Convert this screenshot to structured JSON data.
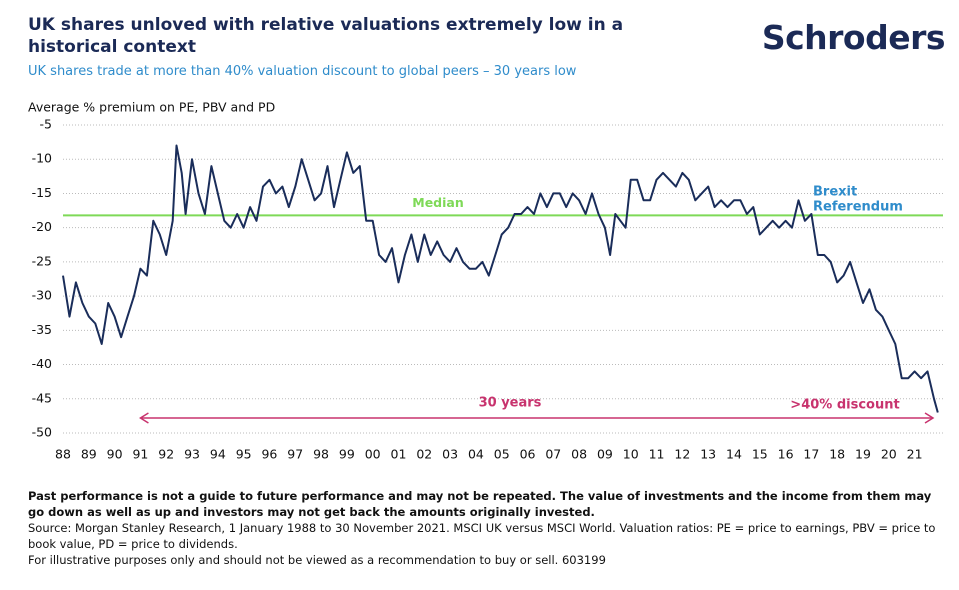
{
  "brand": "Schroders",
  "footnotes": [
    "Past performance is not a guide to future performance and may not be repeated. The value of investments and the income from them may go down as well as up and investors may not get back the amounts originally invested.",
    "Source: Morgan Stanley Research, 1 January 1988 to 30 November 2021. MSCI UK versus MSCI World. Valuation ratios: PE = price to earnings, PBV = price to book value, PD = price to dividends.",
    "For illustrative purposes only and should not be viewed as a recommendation to buy or sell. 603199"
  ],
  "chart_data": {
    "type": "line",
    "title": "UK shares unloved with relative valuations extremely low in a historical context",
    "subtitle": "UK shares trade at more than 40% valuation discount to global peers – 30 years low",
    "y_label": "Average % premium on PE, PBV and PD",
    "xlim": [
      1988,
      2022.1
    ],
    "xticks": [
      {
        "value": 1988,
        "label": "88"
      },
      {
        "value": 1989,
        "label": "89"
      },
      {
        "value": 1990,
        "label": "90"
      },
      {
        "value": 1991,
        "label": "91"
      },
      {
        "value": 1992,
        "label": "92"
      },
      {
        "value": 1993,
        "label": "93"
      },
      {
        "value": 1994,
        "label": "94"
      },
      {
        "value": 1995,
        "label": "95"
      },
      {
        "value": 1996,
        "label": "96"
      },
      {
        "value": 1997,
        "label": "97"
      },
      {
        "value": 1998,
        "label": "98"
      },
      {
        "value": 1999,
        "label": "99"
      },
      {
        "value": 2000,
        "label": "00"
      },
      {
        "value": 2001,
        "label": "01"
      },
      {
        "value": 2002,
        "label": "02"
      },
      {
        "value": 2003,
        "label": "03"
      },
      {
        "value": 2004,
        "label": "04"
      },
      {
        "value": 2005,
        "label": "05"
      },
      {
        "value": 2006,
        "label": "06"
      },
      {
        "value": 2007,
        "label": "07"
      },
      {
        "value": 2008,
        "label": "08"
      },
      {
        "value": 2009,
        "label": "09"
      },
      {
        "value": 2010,
        "label": "10"
      },
      {
        "value": 2011,
        "label": "11"
      },
      {
        "value": 2012,
        "label": "12"
      },
      {
        "value": 2013,
        "label": "13"
      },
      {
        "value": 2014,
        "label": "14"
      },
      {
        "value": 2015,
        "label": "15"
      },
      {
        "value": 2016,
        "label": "16"
      },
      {
        "value": 2017,
        "label": "17"
      },
      {
        "value": 2018,
        "label": "18"
      },
      {
        "value": 2019,
        "label": "19"
      },
      {
        "value": 2020,
        "label": "20"
      },
      {
        "value": 2021,
        "label": "21"
      }
    ],
    "ylim": [
      -50,
      -5
    ],
    "yticks": [
      -5,
      -10,
      -15,
      -20,
      -25,
      -30,
      -35,
      -40,
      -45,
      -50
    ],
    "grid": true,
    "x": [
      1988.0,
      1988.25,
      1988.5,
      1988.75,
      1989.0,
      1989.25,
      1989.5,
      1989.75,
      1990.0,
      1990.25,
      1990.5,
      1990.75,
      1991.0,
      1991.25,
      1991.5,
      1991.75,
      1992.0,
      1992.25,
      1992.4,
      1992.6,
      1992.75,
      1993.0,
      1993.25,
      1993.5,
      1993.75,
      1994.0,
      1994.25,
      1994.5,
      1994.75,
      1995.0,
      1995.25,
      1995.5,
      1995.75,
      1996.0,
      1996.25,
      1996.5,
      1996.75,
      1997.0,
      1997.25,
      1997.5,
      1997.75,
      1998.0,
      1998.25,
      1998.5,
      1998.75,
      1999.0,
      1999.25,
      1999.5,
      1999.75,
      2000.0,
      2000.25,
      2000.5,
      2000.75,
      2001.0,
      2001.25,
      2001.5,
      2001.75,
      2002.0,
      2002.25,
      2002.5,
      2002.75,
      2003.0,
      2003.25,
      2003.5,
      2003.75,
      2004.0,
      2004.25,
      2004.5,
      2004.75,
      2005.0,
      2005.25,
      2005.5,
      2005.75,
      2006.0,
      2006.25,
      2006.5,
      2006.75,
      2007.0,
      2007.25,
      2007.5,
      2007.75,
      2008.0,
      2008.25,
      2008.5,
      2008.75,
      2009.0,
      2009.2,
      2009.4,
      2009.6,
      2009.8,
      2010.0,
      2010.25,
      2010.5,
      2010.75,
      2011.0,
      2011.25,
      2011.5,
      2011.75,
      2012.0,
      2012.25,
      2012.5,
      2012.75,
      2013.0,
      2013.25,
      2013.5,
      2013.75,
      2014.0,
      2014.25,
      2014.5,
      2014.75,
      2015.0,
      2015.25,
      2015.5,
      2015.75,
      2016.0,
      2016.25,
      2016.5,
      2016.75,
      2017.0,
      2017.25,
      2017.5,
      2017.75,
      2018.0,
      2018.25,
      2018.5,
      2018.75,
      2019.0,
      2019.25,
      2019.5,
      2019.75,
      2020.0,
      2020.25,
      2020.5,
      2020.75,
      2021.0,
      2021.25,
      2021.5,
      2021.75,
      2021.9
    ],
    "series": [
      {
        "color": "#1a2d5a",
        "values": [
          -27,
          -33,
          -28,
          -31,
          -33,
          -34,
          -37,
          -31,
          -33,
          -36,
          -33,
          -30,
          -26,
          -27,
          -19,
          -21,
          -24,
          -19,
          -8,
          -12,
          -18,
          -10,
          -15,
          -18,
          -11,
          -15,
          -19,
          -20,
          -18,
          -20,
          -17,
          -19,
          -14,
          -13,
          -15,
          -14,
          -17,
          -14,
          -10,
          -13,
          -16,
          -15,
          -11,
          -17,
          -13,
          -9,
          -12,
          -11,
          -19,
          -19,
          -24,
          -25,
          -23,
          -28,
          -24,
          -21,
          -25,
          -21,
          -24,
          -22,
          -24,
          -25,
          -23,
          -25,
          -26,
          -26,
          -25,
          -27,
          -24,
          -21,
          -20,
          -18,
          -18,
          -17,
          -18,
          -15,
          -17,
          -15,
          -15,
          -17,
          -15,
          -16,
          -18,
          -15,
          -18,
          -20,
          -24,
          -18,
          -19,
          -20,
          -13,
          -13,
          -16,
          -16,
          -13,
          -12,
          -13,
          -14,
          -12,
          -13,
          -16,
          -15,
          -14,
          -17,
          -16,
          -17,
          -16,
          -16,
          -18,
          -17,
          -21,
          -20,
          -19,
          -20,
          -19,
          -20,
          -16,
          -19,
          -18,
          -24,
          -24,
          -25,
          -28,
          -27,
          -25,
          -28,
          -31,
          -29,
          -32,
          -33,
          -35,
          -37,
          -42,
          -42,
          -41,
          -42,
          -41,
          -45,
          -47
        ]
      }
    ],
    "median": {
      "label": "Median",
      "value": -18.2,
      "color": "#7ed957"
    },
    "annotations": [
      {
        "text": "Brexit",
        "color": "#2f8ccb"
      },
      {
        "text": "Referendum",
        "color": "#2f8ccb"
      },
      {
        "text": "30 years",
        "color": "#c8336e"
      },
      {
        "text": ">40% discount",
        "color": "#c8336e"
      }
    ]
  }
}
